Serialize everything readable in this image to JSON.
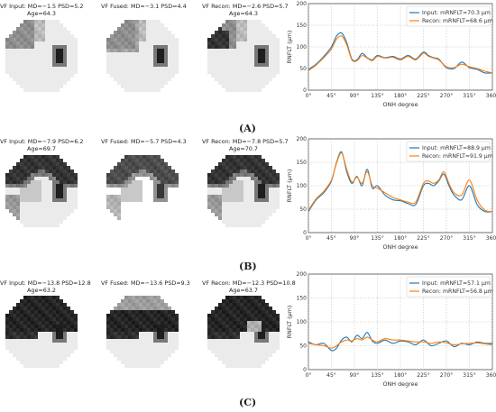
{
  "figure": {
    "rows": [
      {
        "letter": "(A)",
        "vf_input": {
          "line1": "VF Input: MD=−1.5 PSD=5.2",
          "line2": "Age=64.3"
        },
        "vf_fused": {
          "line1": "VF Fused: MD=−3.1 PSD=4.4",
          "line2": ""
        },
        "vf_recon": {
          "line1": "VF Recon: MD=−2.6 PSD=5.7",
          "line2": "Age=64.3"
        }
      },
      {
        "letter": "(B)",
        "vf_input": {
          "line1": "VF Input: MD=−7.9 PSD=6.2",
          "line2": "Age=69.7"
        },
        "vf_fused": {
          "line1": "VF Fused: MD=−5.7 PSD=4.3",
          "line2": ""
        },
        "vf_recon": {
          "line1": "VF Recon: MD=−7.8 PSD=5.7",
          "line2": "Age=70.7"
        }
      },
      {
        "letter": "(C)",
        "vf_input": {
          "line1": "VF Input: MD=−13.8 PSD=12.8",
          "line2": "Age=63.2"
        },
        "vf_fused": {
          "line1": "VF Fused: MD=−13.6 PSD=9.3",
          "line2": ""
        },
        "vf_recon": {
          "line1": "VF Recon: MD=−12.3 PSD=10.8",
          "line2": "Age=63.7"
        }
      }
    ]
  },
  "vf_maps": [
    {
      "severity": "mild",
      "defect": "superior-left"
    },
    {
      "severity": "moderate",
      "defect": "superior-peripheral"
    },
    {
      "severity": "severe",
      "defect": "superior-hemifield"
    }
  ],
  "chart_data": [
    {
      "type": "line",
      "xlabel": "ONH degree",
      "ylabel": "RNFLT (μm)",
      "xlim": [
        0,
        360
      ],
      "ylim": [
        0,
        200
      ],
      "xticks": [
        "0°",
        "45°",
        "90°",
        "135°",
        "180°",
        "225°",
        "270°",
        "315°",
        "360°"
      ],
      "yticks": [
        "0",
        "50",
        "100",
        "150",
        "200"
      ],
      "grid": true,
      "legend_position": "top-right",
      "x": [
        0,
        15,
        30,
        45,
        55,
        65,
        75,
        85,
        95,
        105,
        115,
        125,
        135,
        150,
        165,
        180,
        195,
        210,
        225,
        235,
        245,
        255,
        270,
        285,
        300,
        315,
        330,
        345,
        360
      ],
      "series": [
        {
          "name": "Input:  mRNFLT=70.3 μm",
          "color": "#1f77b4",
          "values": [
            48,
            60,
            78,
            100,
            125,
            132,
            110,
            72,
            70,
            85,
            75,
            70,
            80,
            75,
            78,
            72,
            80,
            72,
            88,
            80,
            75,
            72,
            52,
            50,
            65,
            52,
            48,
            40,
            40
          ]
        },
        {
          "name": "Recon:  mRNFLT=68.6 μm",
          "color": "#ff7f0e",
          "values": [
            45,
            58,
            75,
            95,
            118,
            125,
            105,
            70,
            68,
            80,
            74,
            68,
            78,
            74,
            76,
            70,
            78,
            70,
            85,
            78,
            74,
            70,
            54,
            52,
            60,
            54,
            50,
            44,
            40
          ]
        }
      ]
    },
    {
      "type": "line",
      "xlabel": "ONH degree",
      "ylabel": "RNFLT (μm)",
      "xlim": [
        0,
        360
      ],
      "ylim": [
        0,
        200
      ],
      "xticks": [
        "0°",
        "45°",
        "90°",
        "135°",
        "180°",
        "225°",
        "270°",
        "315°",
        "360°"
      ],
      "yticks": [
        "0",
        "50",
        "100",
        "150",
        "200"
      ],
      "grid": true,
      "legend_position": "top-right",
      "x": [
        0,
        15,
        30,
        45,
        55,
        65,
        75,
        85,
        95,
        105,
        115,
        125,
        135,
        150,
        165,
        180,
        195,
        210,
        225,
        235,
        245,
        255,
        265,
        275,
        285,
        300,
        315,
        330,
        345,
        360
      ],
      "series": [
        {
          "name": "Input:  mRNFLT=88.9 μm",
          "color": "#1f77b4",
          "values": [
            45,
            70,
            85,
            110,
            150,
            172,
            130,
            105,
            120,
            100,
            135,
            95,
            100,
            80,
            70,
            68,
            62,
            60,
            100,
            105,
            100,
            110,
            125,
            100,
            80,
            70,
            100,
            60,
            45,
            45
          ]
        },
        {
          "name": "Recon:  mRNFLT=91.9 μm",
          "color": "#ff7f0e",
          "values": [
            48,
            72,
            88,
            112,
            148,
            170,
            135,
            108,
            118,
            105,
            130,
            100,
            95,
            85,
            75,
            70,
            65,
            65,
            105,
            110,
            105,
            112,
            130,
            105,
            85,
            80,
            112,
            70,
            48,
            45
          ]
        }
      ]
    },
    {
      "type": "line",
      "xlabel": "ONH degree",
      "ylabel": "RNFLT (μm)",
      "xlim": [
        0,
        360
      ],
      "ylim": [
        0,
        200
      ],
      "xticks": [
        "0°",
        "45°",
        "90°",
        "135°",
        "180°",
        "225°",
        "270°",
        "315°",
        "360°"
      ],
      "yticks": [
        "0",
        "50",
        "100",
        "150",
        "200"
      ],
      "grid": true,
      "legend_position": "top-right",
      "x": [
        0,
        15,
        30,
        45,
        55,
        65,
        75,
        85,
        95,
        105,
        115,
        125,
        135,
        150,
        165,
        180,
        195,
        210,
        225,
        240,
        255,
        270,
        285,
        300,
        315,
        330,
        345,
        360
      ],
      "series": [
        {
          "name": "Input:  mRNFLT=57.1 μm",
          "color": "#1f77b4",
          "values": [
            58,
            52,
            55,
            40,
            45,
            62,
            68,
            58,
            72,
            65,
            78,
            60,
            55,
            62,
            55,
            60,
            58,
            52,
            62,
            50,
            55,
            60,
            48,
            55,
            52,
            58,
            55,
            55
          ]
        },
        {
          "name": "Recon:  mRNFLT=56.8 μm",
          "color": "#ff7f0e",
          "values": [
            55,
            52,
            50,
            45,
            50,
            58,
            62,
            60,
            65,
            62,
            68,
            62,
            58,
            65,
            62,
            62,
            60,
            58,
            58,
            55,
            58,
            56,
            52,
            54,
            55,
            56,
            54,
            52
          ]
        }
      ]
    }
  ]
}
